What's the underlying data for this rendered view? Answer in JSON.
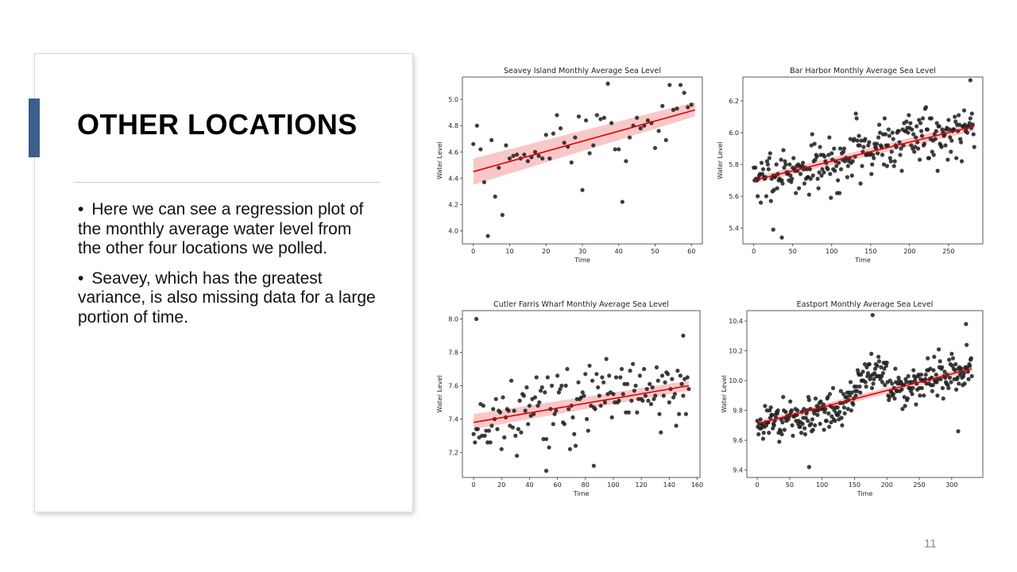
{
  "slide": {
    "title": "OTHER LOCATIONS",
    "bullets": [
      "Here we can see a regression plot of the monthly average water level from the other four locations we polled.",
      "Seavey, which has the greatest variance, is also missing data for a large portion of time."
    ],
    "bullet_glyph": "•",
    "page_number": "11"
  },
  "colors": {
    "accent_bar": "#3a5f8a",
    "points": "#222222",
    "regression": "#e00000",
    "band": "#f5b5b5"
  },
  "chart_data": [
    {
      "type": "scatter",
      "title": "Seavey Island Monthly Average Sea Level",
      "xlabel": "Time",
      "ylabel": "Water Level",
      "xlim": [
        -3,
        63
      ],
      "ylim": [
        3.9,
        5.17
      ],
      "xticks": [
        0,
        10,
        20,
        30,
        40,
        50,
        60
      ],
      "yticks": [
        4.0,
        4.2,
        4.4,
        4.6,
        4.8,
        5.0
      ],
      "ytick_labels": [
        "4.0",
        "4.2",
        "4.4",
        "4.6",
        "4.8",
        "5.0"
      ],
      "regression": {
        "x": [
          0,
          61
        ],
        "y": [
          4.45,
          4.92
        ]
      },
      "band": {
        "lower": [
          4.35,
          4.87
        ],
        "upper": [
          4.55,
          4.98
        ]
      },
      "points": [
        [
          0,
          4.66
        ],
        [
          1,
          4.8
        ],
        [
          2,
          4.62
        ],
        [
          3,
          4.37
        ],
        [
          4,
          3.96
        ],
        [
          5,
          4.69
        ],
        [
          6,
          4.26
        ],
        [
          7,
          4.48
        ],
        [
          8,
          4.12
        ],
        [
          9,
          4.65
        ],
        [
          10,
          4.55
        ],
        [
          11,
          4.57
        ],
        [
          12,
          4.58
        ],
        [
          13,
          4.55
        ],
        [
          14,
          4.58
        ],
        [
          15,
          4.53
        ],
        [
          16,
          4.56
        ],
        [
          17,
          4.6
        ],
        [
          18,
          4.57
        ],
        [
          19,
          4.55
        ],
        [
          20,
          4.73
        ],
        [
          21,
          4.55
        ],
        [
          22,
          4.74
        ],
        [
          23,
          4.88
        ],
        [
          24,
          4.78
        ],
        [
          25,
          4.67
        ],
        [
          26,
          4.64
        ],
        [
          27,
          4.52
        ],
        [
          28,
          4.71
        ],
        [
          29,
          4.87
        ],
        [
          30,
          4.31
        ],
        [
          31,
          4.84
        ],
        [
          32,
          4.59
        ],
        [
          33,
          4.65
        ],
        [
          34,
          4.88
        ],
        [
          35,
          4.85
        ],
        [
          36,
          4.86
        ],
        [
          37,
          5.12
        ],
        [
          38,
          4.82
        ],
        [
          39,
          4.62
        ],
        [
          40,
          4.62
        ],
        [
          41,
          4.22
        ],
        [
          42,
          4.53
        ],
        [
          43,
          4.71
        ],
        [
          44,
          4.8
        ],
        [
          45,
          4.86
        ],
        [
          46,
          4.78
        ],
        [
          47,
          4.8
        ],
        [
          48,
          4.84
        ],
        [
          49,
          4.82
        ],
        [
          50,
          4.63
        ],
        [
          51,
          4.76
        ],
        [
          52,
          4.95
        ],
        [
          53,
          4.69
        ],
        [
          54,
          5.11
        ],
        [
          55,
          4.92
        ],
        [
          56,
          4.93
        ],
        [
          57,
          5.11
        ],
        [
          58,
          5.05
        ],
        [
          59,
          4.94
        ],
        [
          60,
          4.96
        ]
      ]
    },
    {
      "type": "scatter",
      "title": "Bar Harbor Monthly Average Sea Level",
      "xlabel": "Time",
      "ylabel": "Water Level",
      "xlim": [
        -14,
        294
      ],
      "ylim": [
        5.3,
        6.35
      ],
      "xticks": [
        0,
        50,
        100,
        150,
        200,
        250
      ],
      "yticks": [
        5.4,
        5.6,
        5.8,
        6.0,
        6.2
      ],
      "ytick_labels": [
        "5.4",
        "5.6",
        "5.8",
        "6.0",
        "6.2"
      ],
      "regression": {
        "x": [
          0,
          283
        ],
        "y": [
          5.7,
          6.04
        ]
      },
      "band": {
        "lower": [
          5.68,
          6.01
        ],
        "upper": [
          5.72,
          6.07
        ]
      },
      "points": []
    },
    {
      "type": "scatter",
      "title": "Cutler Farris Wharf Monthly Average Sea Level",
      "xlabel": "Time",
      "ylabel": "Water Level",
      "xlim": [
        -8,
        162
      ],
      "ylim": [
        7.05,
        8.05
      ],
      "xticks": [
        0,
        20,
        40,
        60,
        80,
        100,
        120,
        140,
        160
      ],
      "yticks": [
        7.2,
        7.4,
        7.6,
        7.8,
        8.0
      ],
      "ytick_labels": [
        "7.2",
        "7.4",
        "7.6",
        "7.8",
        "8.0"
      ],
      "regression": {
        "x": [
          0,
          154
        ],
        "y": [
          7.38,
          7.6
        ]
      },
      "band": {
        "lower": [
          7.34,
          7.57
        ],
        "upper": [
          7.43,
          7.63
        ]
      },
      "points": []
    },
    {
      "type": "scatter",
      "title": "Eastport Monthly Average Sea Level",
      "xlabel": "Time",
      "ylabel": "Water Level",
      "xlim": [
        -16,
        348
      ],
      "ylim": [
        9.35,
        10.47
      ],
      "xticks": [
        0,
        50,
        100,
        150,
        200,
        250,
        300
      ],
      "yticks": [
        9.4,
        9.6,
        9.8,
        10.0,
        10.2,
        10.4
      ],
      "ytick_labels": [
        "9.4",
        "9.6",
        "9.8",
        "10.0",
        "10.2",
        "10.4"
      ],
      "regression": {
        "x": [
          0,
          331
        ],
        "y": [
          9.71,
          10.08
        ]
      },
      "band": {
        "lower": [
          9.69,
          10.06
        ],
        "upper": [
          9.73,
          10.1
        ]
      },
      "points": []
    }
  ]
}
